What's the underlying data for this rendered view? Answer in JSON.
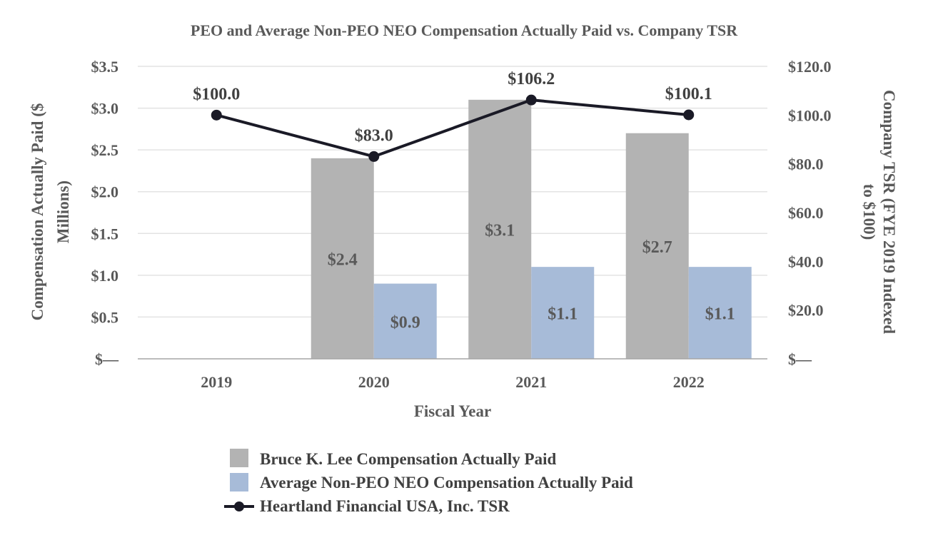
{
  "chart_data": {
    "type": "bar",
    "title": "PEO and Average Non-PEO NEO Compensation Actually Paid vs. Company TSR",
    "xlabel": "Fiscal Year",
    "ylabel_line1": "Compensation Actually Paid ($",
    "ylabel_line2": "Millions)",
    "y2label_line1": "Company TSR (FYE 2019 Indexed",
    "y2label_line2": "to $100)",
    "categories": [
      "2019",
      "2020",
      "2021",
      "2022"
    ],
    "ylim": [
      0,
      3.5
    ],
    "y2lim": [
      0,
      120
    ],
    "yticks": [
      {
        "value": 3.5,
        "label": "$3.5"
      },
      {
        "value": 3.0,
        "label": "$3.0"
      },
      {
        "value": 2.5,
        "label": "$2.5"
      },
      {
        "value": 2.0,
        "label": "$2.0"
      },
      {
        "value": 1.5,
        "label": "$1.5"
      },
      {
        "value": 1.0,
        "label": "$1.0"
      },
      {
        "value": 0.5,
        "label": "$0.5"
      },
      {
        "value": 0,
        "label": "$—"
      }
    ],
    "y2ticks": [
      {
        "value": 120,
        "label": "$120.0"
      },
      {
        "value": 100,
        "label": "$100.0"
      },
      {
        "value": 80,
        "label": "$80.0"
      },
      {
        "value": 60,
        "label": "$60.0"
      },
      {
        "value": 40,
        "label": "$40.0"
      },
      {
        "value": 20,
        "label": "$20.0"
      },
      {
        "value": 0,
        "label": "$—"
      }
    ],
    "series": [
      {
        "name": "Bruce K. Lee Compensation Actually Paid",
        "kind": "bar",
        "axis": "left",
        "color": "#b3b3b3",
        "values": [
          null,
          2.4,
          3.1,
          2.7
        ],
        "labels": [
          "",
          "$2.4",
          "$3.1",
          "$2.7"
        ]
      },
      {
        "name": "Average Non-PEO NEO Compensation Actually Paid",
        "kind": "bar",
        "axis": "left",
        "color": "#a7bbd8",
        "values": [
          null,
          0.9,
          1.1,
          1.1
        ],
        "labels": [
          "",
          "$0.9",
          "$1.1",
          "$1.1"
        ]
      },
      {
        "name": "Heartland Financial USA, Inc. TSR",
        "kind": "line",
        "axis": "right",
        "color": "#1a1a26",
        "values": [
          100.0,
          83.0,
          106.2,
          100.1
        ],
        "labels": [
          "$100.0",
          "$83.0",
          "$106.2",
          "$100.1"
        ]
      }
    ],
    "grid": true,
    "legend_position": "bottom"
  }
}
